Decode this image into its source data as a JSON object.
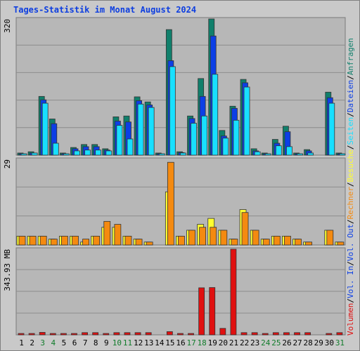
{
  "title": "Tages-Statistik im Monat August 2024",
  "colors": {
    "background": "#c9c9c9",
    "plot_bg": "#b7b7b7",
    "title": "#0d3ee0",
    "anfragen": "#107f6b",
    "dateien": "#0c3fe6",
    "seiten": "#18dfff",
    "besuche": "#ffff30",
    "rechner": "#f48a10",
    "volumen": "#e01010",
    "weekend_label": "#117c2b",
    "weekday_label": "#000000"
  },
  "chart_data": [
    {
      "type": "bar",
      "panel": "top",
      "ymax_label": "320",
      "ylim": [
        0,
        320
      ],
      "categories": [
        "1",
        "2",
        "3",
        "4",
        "5",
        "6",
        "7",
        "8",
        "9",
        "10",
        "11",
        "12",
        "13",
        "14",
        "15",
        "16",
        "17",
        "18",
        "19",
        "20",
        "21",
        "22",
        "23",
        "24",
        "25",
        "26",
        "27",
        "28",
        "29",
        "30",
        "31"
      ],
      "weekend_days": [
        "3",
        "4",
        "10",
        "11",
        "17",
        "18",
        "24",
        "25",
        "31"
      ],
      "right_labels": [
        {
          "text": "Anfragen",
          "color_key": "anfragen"
        },
        {
          "text": "/",
          "color_key": "weekday_label"
        },
        {
          "text": "Dateien",
          "color_key": "dateien"
        },
        {
          "text": "/",
          "color_key": "weekday_label"
        },
        {
          "text": "Seiten",
          "color_key": "seiten"
        },
        {
          "text": "/",
          "color_key": "weekday_label"
        },
        {
          "text": "Besuche",
          "color_key": "besuche"
        },
        {
          "text": "/",
          "color_key": "weekday_label"
        },
        {
          "text": "Rechner",
          "color_key": "rechner"
        },
        {
          "text": "/",
          "color_key": "weekday_label"
        },
        {
          "text": "Vol. Out",
          "color_key": "dateien"
        },
        {
          "text": "/",
          "color_key": "weekday_label"
        },
        {
          "text": "Vol. In",
          "color_key": "dateien"
        },
        {
          "text": "/",
          "color_key": "weekday_label"
        },
        {
          "text": "Volumen",
          "color_key": "volumen"
        }
      ],
      "series": [
        {
          "name": "Anfragen",
          "color_key": "anfragen",
          "values": [
            5,
            8,
            138,
            85,
            5,
            18,
            25,
            25,
            15,
            90,
            92,
            137,
            125,
            5,
            295,
            8,
            92,
            180,
            320,
            58,
            115,
            178,
            15,
            5,
            37,
            68,
            5,
            13,
            0,
            148,
            5
          ]
        },
        {
          "name": "Dateien",
          "color_key": "dateien",
          "values": [
            3,
            5,
            130,
            74,
            3,
            15,
            20,
            20,
            12,
            80,
            78,
            128,
            118,
            3,
            222,
            6,
            86,
            138,
            280,
            45,
            110,
            170,
            10,
            3,
            28,
            55,
            3,
            10,
            0,
            135,
            3
          ]
        },
        {
          "name": "Seiten",
          "color_key": "seiten",
          "values": [
            3,
            5,
            122,
            28,
            3,
            10,
            12,
            12,
            10,
            70,
            38,
            120,
            112,
            3,
            208,
            5,
            75,
            92,
            190,
            40,
            82,
            160,
            8,
            3,
            22,
            20,
            3,
            5,
            0,
            122,
            2
          ]
        }
      ]
    },
    {
      "type": "bar",
      "panel": "middle",
      "ymax_label": "29",
      "ylim": [
        0,
        29
      ],
      "series": [
        {
          "name": "Besuche",
          "color_key": "besuche",
          "values": [
            3,
            3,
            3,
            2,
            3,
            3,
            1,
            3,
            6,
            6,
            3,
            2,
            1,
            0,
            18,
            3,
            5,
            7,
            9,
            5,
            2,
            12,
            5,
            2,
            3,
            3,
            2,
            1,
            0,
            5,
            1
          ]
        },
        {
          "name": "Rechner",
          "color_key": "rechner",
          "values": [
            3,
            3,
            3,
            2,
            3,
            3,
            2,
            3,
            8,
            7,
            3,
            2,
            1,
            0,
            28,
            3,
            5,
            6,
            6,
            5,
            2,
            11,
            5,
            2,
            3,
            3,
            2,
            1,
            0,
            5,
            1
          ]
        }
      ]
    },
    {
      "type": "bar",
      "panel": "bottom",
      "ymax_label": "343.93 MB",
      "ylim": [
        0,
        343.93
      ],
      "series": [
        {
          "name": "Volumen",
          "color_key": "volumen",
          "values": [
            2,
            2,
            10,
            3,
            2,
            2,
            9,
            9,
            3,
            9,
            9,
            9,
            9,
            0,
            13,
            2,
            2,
            189,
            190,
            26,
            343.93,
            9,
            9,
            3,
            9,
            9,
            9,
            9,
            0,
            3,
            9
          ]
        }
      ]
    }
  ]
}
